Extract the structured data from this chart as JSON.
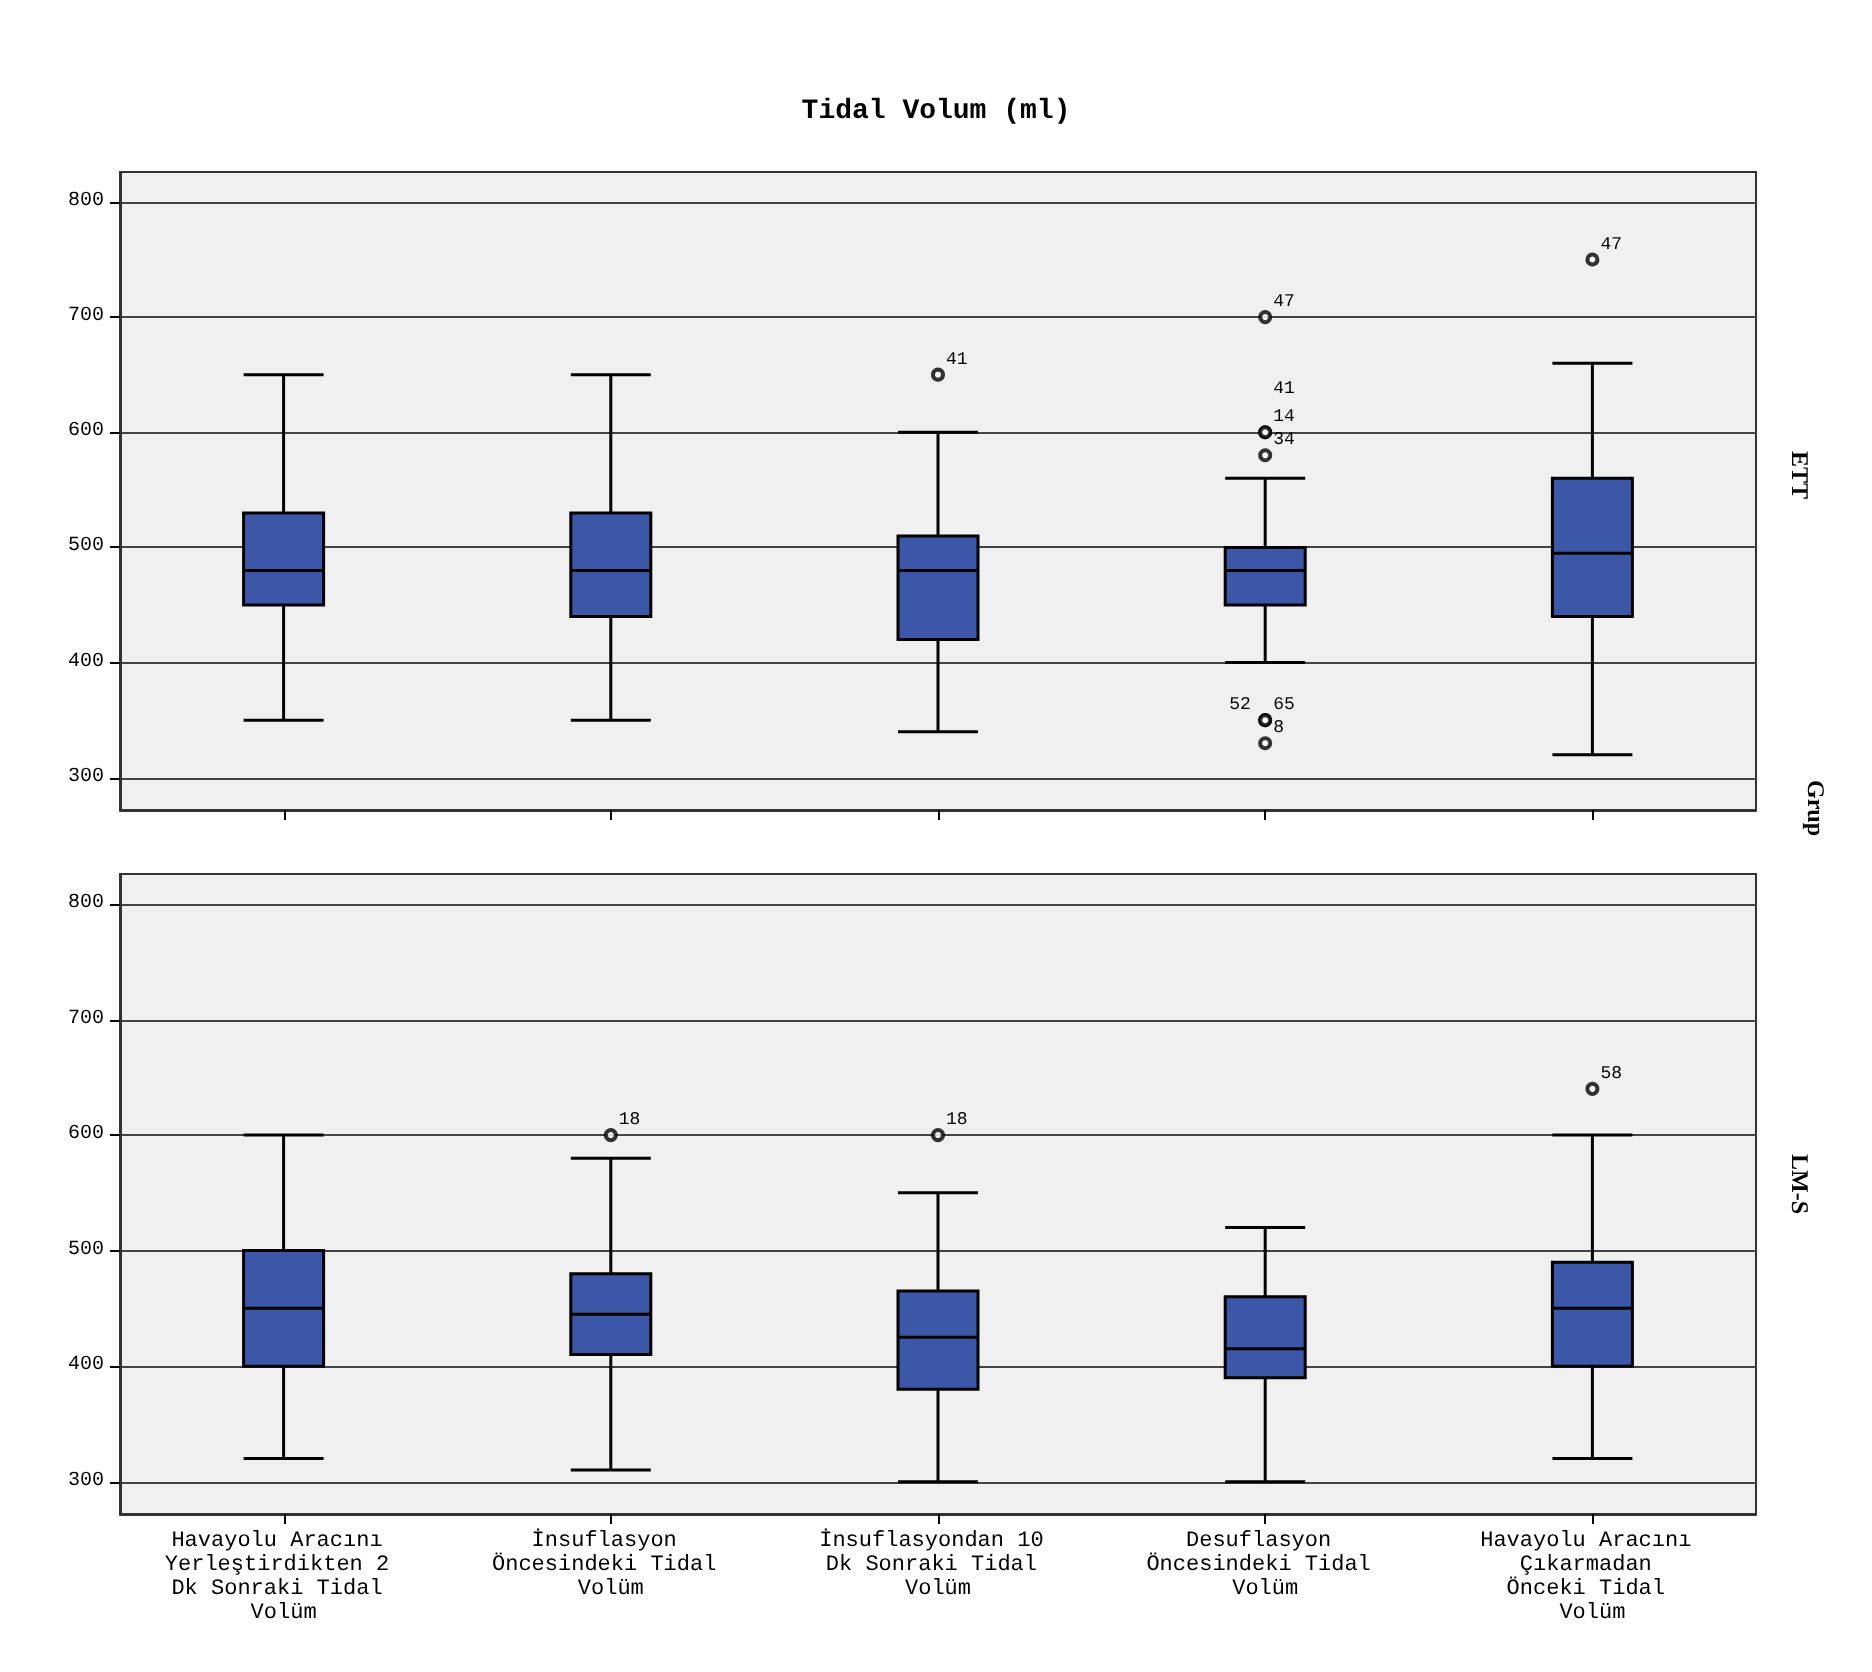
{
  "chart_data": [
    {
      "type": "box",
      "title": "Tidal Volum (ml)",
      "y2label": "ETT",
      "legend_title": "Grup",
      "annotations": [
        "41",
        "47",
        "14",
        "41",
        "34",
        "65",
        "52",
        "8",
        "47"
      ],
      "categories": [
        "Havayolu Aracını Yerleştirdikten 2 Dk Sonraki Tidal Volüm",
        "İnsuflasyon Öncesindeki Tidal Volüm",
        "İnsuflasyondan 10 Dk Sonraki Tidal Volüm",
        "Desuflasyon Öncesindeki Tidal Volüm",
        "Havayolu Aracını Çıkarmadan Önceki Tidal Volüm"
      ],
      "color": "#3c56a8",
      "boxes": [
        {
          "low": 350,
          "q1": 450,
          "median": 480,
          "q3": 530,
          "high": 650
        },
        {
          "low": 350,
          "q1": 440,
          "median": 480,
          "q3": 530,
          "high": 650
        },
        {
          "low": 340,
          "q1": 420,
          "median": 480,
          "q3": 510,
          "high": 600,
          "outliers": [
            650
          ]
        },
        {
          "low": 400,
          "q1": 450,
          "median": 480,
          "q3": 500,
          "high": 560,
          "outliers": [
            700,
            600,
            600,
            580,
            350,
            350,
            330
          ]
        },
        {
          "low": 320,
          "q1": 440,
          "median": 495,
          "q3": 560,
          "high": 660,
          "outliers": [
            750
          ]
        }
      ],
      "ylim": [
        272,
        826
      ],
      "yticks": [
        300,
        400,
        500,
        600,
        700,
        800
      ],
      "grid": "y",
      "tick_labels": "y"
    },
    {
      "type": "box",
      "y2label": "LM-S",
      "annotations": [
        "18",
        "18",
        "58"
      ],
      "categories": [
        "Havayolu Aracını Yerleştirdikten 2 Dk Sonraki Tidal Volüm",
        "İnsuflasyon Öncesindeki Tidal Volüm",
        "İnsuflasyondan 10 Dk Sonraki Tidal Volüm",
        "Desuflasyon Öncesindeki Tidal Volüm",
        "Havayolu Aracını Çıkarmadan Önceki Tidal Volüm"
      ],
      "color": "#3c56a8",
      "boxes": [
        {
          "low": 320,
          "q1": 400,
          "median": 450,
          "q3": 500,
          "high": 600
        },
        {
          "low": 310,
          "q1": 410,
          "median": 445,
          "q3": 480,
          "high": 580,
          "outliers": [
            600
          ]
        },
        {
          "low": 300,
          "q1": 380,
          "median": 425,
          "q3": 465,
          "high": 550,
          "outliers": [
            600
          ]
        },
        {
          "low": 300,
          "q1": 390,
          "median": 415,
          "q3": 460,
          "high": 520
        },
        {
          "low": 320,
          "q1": 400,
          "median": 450,
          "q3": 490,
          "high": 600,
          "outliers": [
            640
          ]
        }
      ],
      "ylim": [
        272,
        826
      ],
      "yticks": [
        300,
        400,
        500,
        600,
        700,
        800
      ],
      "grid": "y"
    }
  ]
}
